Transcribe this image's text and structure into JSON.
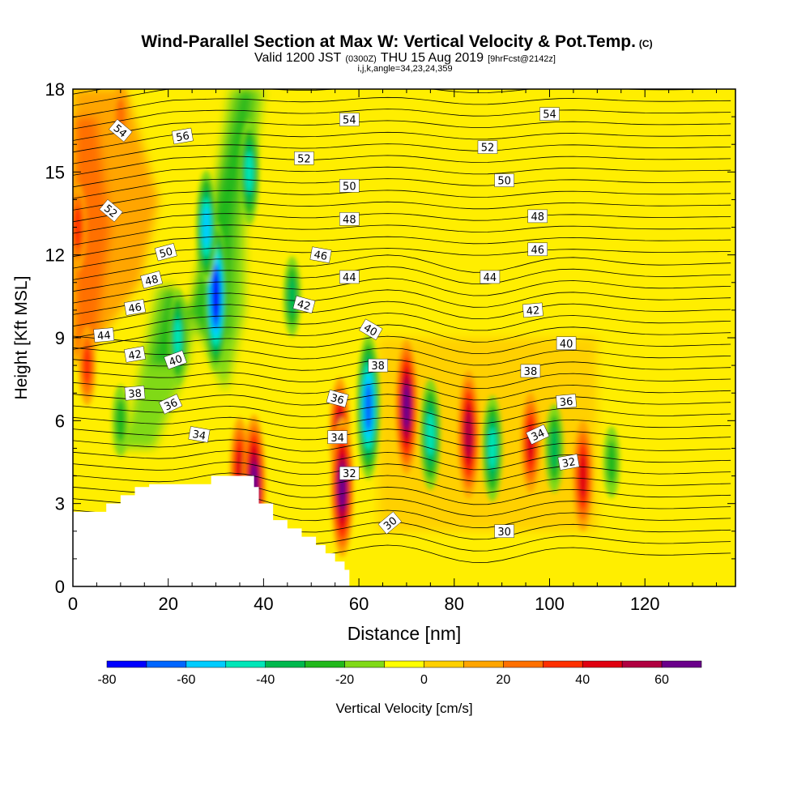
{
  "chart_data": {
    "type": "heatmap",
    "title": "Wind-Parallel Section at Max W: Vertical Velocity & Pot.Temp.",
    "title_mark": "(C)",
    "subtitle_pre": "Valid 1200 JST",
    "subtitle_utc": "(0300Z)",
    "subtitle_date": "THU 15 Aug 2019",
    "subtitle_fcst": "[9hrFcst@2142z]",
    "subtitle2": "i,j,k,angle=34,23,24,359",
    "xlabel": "Distance [nm]",
    "ylabel": "Height [Kft MSL]",
    "xlim": [
      0,
      139
    ],
    "ylim": [
      0,
      18
    ],
    "xticks": [
      0,
      20,
      40,
      60,
      80,
      100,
      120
    ],
    "yticks": [
      0,
      3,
      6,
      9,
      12,
      15,
      18
    ],
    "grid": false,
    "colorbar": {
      "label": "Vertical Velocity [cm/s]",
      "placement": "bottom",
      "boundaries": [
        -80,
        -70,
        -60,
        -50,
        -40,
        -30,
        -20,
        -10,
        0,
        10,
        20,
        30,
        40,
        50,
        60,
        70
      ],
      "tick_labels": [
        "-80",
        "-60",
        "-40",
        "-20",
        "0",
        "20",
        "40",
        "60"
      ],
      "tick_values": [
        -80,
        -60,
        -40,
        -20,
        0,
        20,
        40,
        60
      ],
      "colors": [
        "#0000ff",
        "#0066ff",
        "#00ccff",
        "#00e6b8",
        "#00b84d",
        "#22b81c",
        "#80d918",
        "#ffff00",
        "#ffd000",
        "#ffa500",
        "#ff7000",
        "#ff3000",
        "#e00010",
        "#b00040",
        "#6a008a"
      ]
    },
    "updrafts": [
      {
        "x": 1,
        "z": 13,
        "w": 35
      },
      {
        "x": 3,
        "z": 8,
        "w": 30
      },
      {
        "x": 10,
        "z": 17,
        "w": 20
      },
      {
        "x": 35,
        "z": 4.2,
        "w": 45
      },
      {
        "x": 38,
        "z": 3.6,
        "w": 68
      },
      {
        "x": 56,
        "z": 5.5,
        "w": 50
      },
      {
        "x": 56.5,
        "z": 3.6,
        "w": 65
      },
      {
        "x": 70,
        "z": 6.5,
        "w": 62
      },
      {
        "x": 83,
        "z": 5.5,
        "w": 58
      },
      {
        "x": 96,
        "z": 5.2,
        "w": 42
      },
      {
        "x": 107,
        "z": 4.0,
        "w": 48
      }
    ],
    "downdrafts": [
      {
        "x": 30,
        "z": 10.5,
        "w": -72
      },
      {
        "x": 28,
        "z": 13,
        "w": -50
      },
      {
        "x": 22,
        "z": 9,
        "w": -40
      },
      {
        "x": 37,
        "z": 15,
        "w": -45
      },
      {
        "x": 62,
        "z": 6.5,
        "w": -68
      },
      {
        "x": 75,
        "z": 5.5,
        "w": -48
      },
      {
        "x": 88,
        "z": 5.0,
        "w": -45
      },
      {
        "x": 101,
        "z": 5.0,
        "w": -35
      },
      {
        "x": 113,
        "z": 4.5,
        "w": -25
      },
      {
        "x": 46,
        "z": 10.5,
        "w": -30
      },
      {
        "x": 10,
        "z": 6,
        "w": -25
      }
    ],
    "terrain": [
      [
        0,
        2.7
      ],
      [
        7,
        2.7
      ],
      [
        7,
        3.0
      ],
      [
        10,
        3.0
      ],
      [
        10,
        3.3
      ],
      [
        13,
        3.3
      ],
      [
        13,
        3.6
      ],
      [
        16,
        3.6
      ],
      [
        16,
        3.7
      ],
      [
        29,
        3.7
      ],
      [
        29,
        4.0
      ],
      [
        38,
        4.0
      ],
      [
        38,
        3.6
      ],
      [
        39,
        3.6
      ],
      [
        39,
        3.0
      ],
      [
        42,
        3.0
      ],
      [
        42,
        2.4
      ],
      [
        45,
        2.4
      ],
      [
        45,
        2.1
      ],
      [
        48,
        2.1
      ],
      [
        48,
        1.8
      ],
      [
        51,
        1.8
      ],
      [
        51,
        1.5
      ],
      [
        53,
        1.5
      ],
      [
        53,
        1.2
      ],
      [
        55,
        1.2
      ],
      [
        55,
        0.9
      ],
      [
        57,
        0.9
      ],
      [
        57,
        0.6
      ],
      [
        58,
        0.6
      ],
      [
        58,
        0
      ]
    ],
    "theta_labels": [
      {
        "text": "54",
        "x": 10,
        "z": 16.5,
        "angle": 40
      },
      {
        "text": "56",
        "x": 23,
        "z": 16.3,
        "angle": -10
      },
      {
        "text": "52",
        "x": 8,
        "z": 13.6,
        "angle": 40
      },
      {
        "text": "50",
        "x": 19.5,
        "z": 12.1,
        "angle": -15
      },
      {
        "text": "48",
        "x": 16.5,
        "z": 11.1,
        "angle": -15
      },
      {
        "text": "46",
        "x": 13,
        "z": 10.1,
        "angle": -10
      },
      {
        "text": "44",
        "x": 6.5,
        "z": 9.1,
        "angle": -5
      },
      {
        "text": "42",
        "x": 13,
        "z": 8.4,
        "angle": -10
      },
      {
        "text": "40",
        "x": 21.5,
        "z": 8.2,
        "angle": -20
      },
      {
        "text": "38",
        "x": 13,
        "z": 7.0,
        "angle": -5
      },
      {
        "text": "36",
        "x": 20.5,
        "z": 6.6,
        "angle": -25
      },
      {
        "text": "34",
        "x": 26.5,
        "z": 5.5,
        "angle": 10
      },
      {
        "text": "54",
        "x": 58,
        "z": 16.9,
        "angle": 0
      },
      {
        "text": "52",
        "x": 48.5,
        "z": 15.5,
        "angle": 0
      },
      {
        "text": "50",
        "x": 58,
        "z": 14.5,
        "angle": 0
      },
      {
        "text": "48",
        "x": 58,
        "z": 13.3,
        "angle": 0
      },
      {
        "text": "46",
        "x": 52,
        "z": 12.0,
        "angle": 10
      },
      {
        "text": "44",
        "x": 58,
        "z": 11.2,
        "angle": 0
      },
      {
        "text": "42",
        "x": 48.5,
        "z": 10.2,
        "angle": 15
      },
      {
        "text": "40",
        "x": 62.5,
        "z": 9.3,
        "angle": 30
      },
      {
        "text": "38",
        "x": 64,
        "z": 8.0,
        "angle": 0
      },
      {
        "text": "36",
        "x": 55.5,
        "z": 6.8,
        "angle": 15
      },
      {
        "text": "34",
        "x": 55.5,
        "z": 5.4,
        "angle": 0
      },
      {
        "text": "32",
        "x": 58,
        "z": 4.1,
        "angle": 0
      },
      {
        "text": "30",
        "x": 66.5,
        "z": 2.3,
        "angle": -40
      },
      {
        "text": "54",
        "x": 100,
        "z": 17.1,
        "angle": 0
      },
      {
        "text": "52",
        "x": 87,
        "z": 15.9,
        "angle": 0
      },
      {
        "text": "50",
        "x": 90.5,
        "z": 14.7,
        "angle": 0
      },
      {
        "text": "48",
        "x": 97.5,
        "z": 13.4,
        "angle": 0
      },
      {
        "text": "46",
        "x": 97.5,
        "z": 12.2,
        "angle": 0
      },
      {
        "text": "44",
        "x": 87.5,
        "z": 11.2,
        "angle": 0
      },
      {
        "text": "42",
        "x": 96.5,
        "z": 10.0,
        "angle": -5
      },
      {
        "text": "40",
        "x": 103.5,
        "z": 8.8,
        "angle": 0
      },
      {
        "text": "38",
        "x": 96,
        "z": 7.8,
        "angle": 0
      },
      {
        "text": "36",
        "x": 103.5,
        "z": 6.7,
        "angle": -5
      },
      {
        "text": "34",
        "x": 97.5,
        "z": 5.5,
        "angle": -25
      },
      {
        "text": "32",
        "x": 104,
        "z": 4.5,
        "angle": -10
      },
      {
        "text": "30",
        "x": 90.5,
        "z": 2.0,
        "angle": 0
      }
    ]
  }
}
